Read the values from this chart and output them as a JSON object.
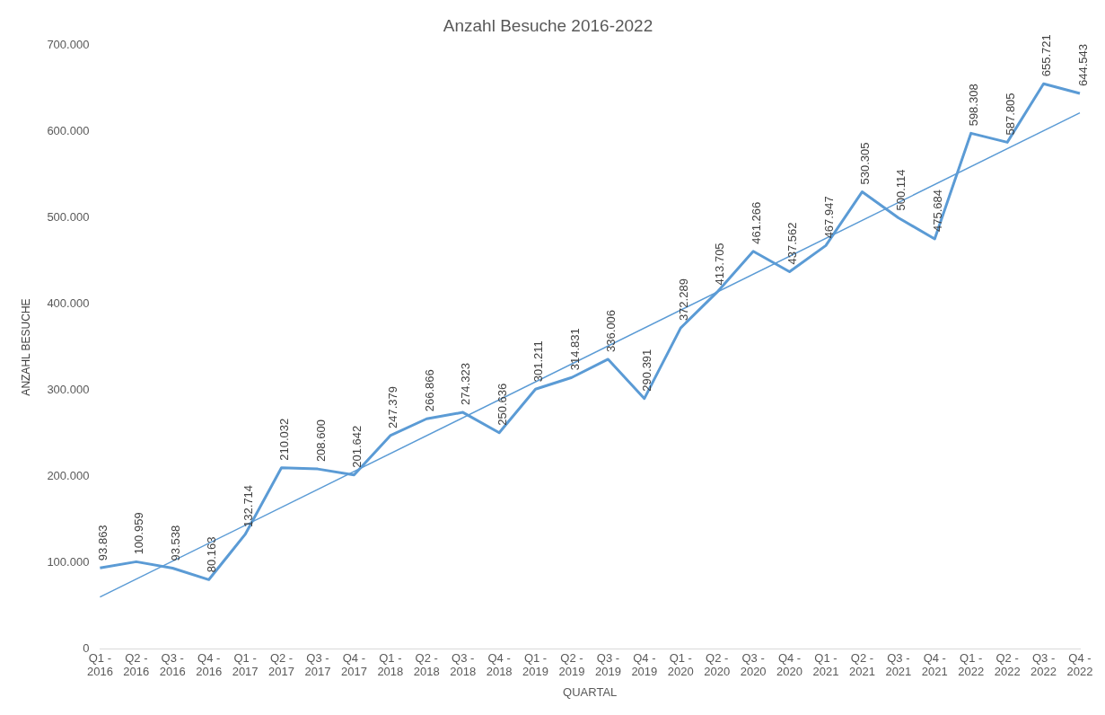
{
  "chart_data": {
    "type": "line",
    "title": "Anzahl Besuche 2016-2022",
    "xlabel": "QUARTAL",
    "ylabel": "ANZAHL BESUCHE",
    "categories": [
      "Q1 - 2016",
      "Q2 - 2016",
      "Q3 - 2016",
      "Q4 - 2016",
      "Q1 - 2017",
      "Q2 - 2017",
      "Q3 - 2017",
      "Q4 - 2017",
      "Q1 - 2018",
      "Q2 - 2018",
      "Q3 - 2018",
      "Q4 - 2018",
      "Q1 - 2019",
      "Q2 - 2019",
      "Q3 - 2019",
      "Q4 - 2019",
      "Q1 - 2020",
      "Q2 - 2020",
      "Q3 - 2020",
      "Q4 - 2020",
      "Q1 - 2021",
      "Q2 - 2021",
      "Q3 - 2021",
      "Q4 - 2021",
      "Q1 - 2022",
      "Q2 - 2022",
      "Q3 - 2022",
      "Q4 - 2022"
    ],
    "series": [
      {
        "color": "#5b9bd5",
        "values": [
          93863,
          100959,
          93538,
          80163,
          132714,
          210032,
          208600,
          201642,
          247379,
          266866,
          274323,
          250636,
          301211,
          314831,
          336006,
          290391,
          372289,
          413705,
          461266,
          437562,
          467947,
          530305,
          500114,
          475684,
          598308,
          587805,
          655721,
          644543
        ],
        "value_labels": [
          "93.863",
          "100.959",
          "93.538",
          "80.163",
          "132.714",
          "210.032",
          "208.600",
          "201.642",
          "247.379",
          "266.866",
          "274.323",
          "250.636",
          "301.211",
          "314.831",
          "336.006",
          "290.391",
          "372.289",
          "413.705",
          "461.266",
          "437.562",
          "467.947",
          "530.305",
          "500.114",
          "475.684",
          "598.308",
          "587.805",
          "655.721",
          "644.543"
        ]
      },
      {
        "type": "line",
        "color": "#5b9bd5",
        "x": [
          "Q1 - 2016",
          "Q4 - 2022"
        ],
        "values": [
          60000,
          622000
        ]
      }
    ],
    "ylim": [
      0,
      700000
    ],
    "yticks": [
      0,
      {
        "value": 100000,
        "label": "100.000"
      },
      {
        "value": 200000,
        "label": "200.000"
      },
      {
        "value": 300000,
        "label": "300.000"
      },
      {
        "value": 400000,
        "label": "400.000"
      },
      {
        "value": 500000,
        "label": "500.000"
      },
      {
        "value": 600000,
        "label": "600.000"
      },
      {
        "value": 700000,
        "label": "700.000"
      }
    ],
    "grid": false,
    "legend": false,
    "marker": "none"
  }
}
